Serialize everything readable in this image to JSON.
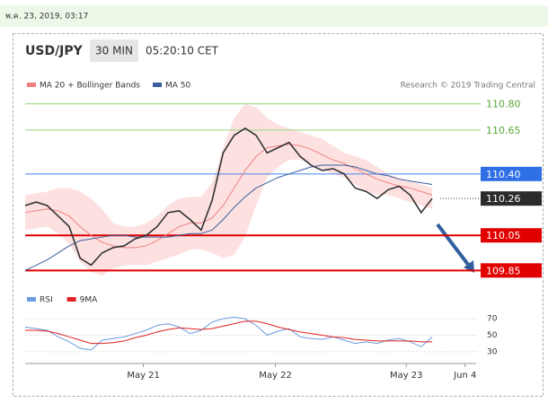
{
  "date": "พ.ค. 23, 2019, 03:17",
  "header": {
    "symbol": "USD/JPY",
    "interval": "30 MIN",
    "time": "05:20:10 CET",
    "credit": "Research © 2019 Trading Central"
  },
  "chart_data": {
    "type": "line",
    "x": [
      0,
      2,
      4,
      6,
      8,
      10,
      12,
      14,
      16,
      18,
      20,
      22,
      24,
      26,
      28,
      30,
      32,
      34,
      36,
      38,
      40,
      42,
      44,
      46,
      48,
      50,
      52,
      54,
      56,
      58,
      60,
      62,
      64,
      66,
      68,
      70,
      72,
      74
    ],
    "values": [
      110.22,
      110.24,
      110.22,
      110.16,
      110.1,
      109.92,
      109.88,
      109.95,
      109.98,
      109.99,
      110.03,
      110.05,
      110.1,
      110.18,
      110.19,
      110.14,
      110.08,
      110.25,
      110.52,
      110.62,
      110.66,
      110.62,
      110.52,
      110.55,
      110.58,
      110.5,
      110.45,
      110.42,
      110.43,
      110.4,
      110.32,
      110.3,
      110.26,
      110.31,
      110.33,
      110.28,
      110.18,
      110.26
    ],
    "color": "#333333",
    "series": [
      {
        "name": "MA 20 + Bollinger Bands",
        "color": "#f08080",
        "values": [
          110.18,
          110.19,
          110.2,
          110.19,
          110.16,
          110.1,
          110.05,
          110.01,
          109.99,
          109.98,
          109.98,
          109.99,
          110.02,
          110.06,
          110.1,
          110.12,
          110.12,
          110.15,
          110.22,
          110.32,
          110.42,
          110.5,
          110.55,
          110.56,
          110.57,
          110.56,
          110.54,
          110.51,
          110.48,
          110.46,
          110.43,
          110.4,
          110.37,
          110.35,
          110.33,
          110.32,
          110.3,
          110.28
        ]
      },
      {
        "name": "MA 50",
        "color": "#3a5f9e",
        "values": [
          109.85,
          109.88,
          109.91,
          109.95,
          109.99,
          110.02,
          110.03,
          110.04,
          110.05,
          110.05,
          110.04,
          110.04,
          110.04,
          110.04,
          110.05,
          110.06,
          110.06,
          110.08,
          110.14,
          110.21,
          110.27,
          110.32,
          110.35,
          110.38,
          110.4,
          110.42,
          110.44,
          110.45,
          110.45,
          110.45,
          110.44,
          110.42,
          110.4,
          110.39,
          110.37,
          110.36,
          110.35,
          110.34
        ]
      }
    ],
    "bands": {
      "color": "#fcdada",
      "upper": [
        110.28,
        110.29,
        110.3,
        110.32,
        110.32,
        110.3,
        110.26,
        110.2,
        110.12,
        110.1,
        110.1,
        110.12,
        110.16,
        110.22,
        110.26,
        110.27,
        110.27,
        110.35,
        110.55,
        110.72,
        110.8,
        110.78,
        110.72,
        110.68,
        110.66,
        110.64,
        110.62,
        110.6,
        110.56,
        110.52,
        110.5,
        110.48,
        110.44,
        110.4,
        110.38,
        110.36,
        110.34,
        110.32
      ],
      "lower": [
        110.08,
        110.09,
        110.1,
        110.06,
        110.0,
        109.9,
        109.84,
        109.82,
        109.86,
        109.88,
        109.88,
        109.88,
        109.9,
        109.92,
        109.94,
        109.97,
        109.97,
        109.95,
        109.92,
        109.94,
        110.04,
        110.22,
        110.38,
        110.44,
        110.48,
        110.48,
        110.46,
        110.42,
        110.4,
        110.38,
        110.34,
        110.3,
        110.28,
        110.28,
        110.26,
        110.24,
        110.22,
        110.2
      ]
    },
    "xlim": [
      0,
      82
    ],
    "ylim": [
      109.78,
      110.88
    ],
    "xticks": [
      {
        "value": 21.5,
        "label": "May 21"
      },
      {
        "value": 45.5,
        "label": "May 22"
      },
      {
        "value": 69.3,
        "label": "May 23"
      },
      {
        "value": 80,
        "label": "Jun 4"
      }
    ],
    "levels": [
      {
        "value": 110.8,
        "label": "110.80",
        "line_color": "#a6d88a",
        "box_color": "#ffffff",
        "text_color": "#5aa83a",
        "dotted": false
      },
      {
        "value": 110.65,
        "label": "110.65",
        "line_color": "#a6d88a",
        "box_color": "#ffffff",
        "text_color": "#5aa83a",
        "dotted": false
      },
      {
        "value": 110.4,
        "label": "110.40",
        "line_color": "#5b8ff0",
        "box_color": "#2f6fe6",
        "text_color": "#ffffff",
        "dotted": false
      },
      {
        "value": 110.26,
        "label": "110.26",
        "line_color": "#333333",
        "box_color": "#2b2b2b",
        "text_color": "#ffffff",
        "dotted": true
      },
      {
        "value": 110.05,
        "label": "110.05",
        "line_color": "#e00000",
        "box_color": "#e00000",
        "text_color": "#ffffff",
        "dotted": false
      },
      {
        "value": 109.85,
        "label": "109.85",
        "line_color": "#e00000",
        "box_color": "#e00000",
        "text_color": "#ffffff",
        "dotted": false
      }
    ],
    "rsi": {
      "ylim": [
        20,
        80
      ],
      "yticks": [
        30,
        50,
        70
      ],
      "series": [
        {
          "name": "RSI",
          "color": "#6b9be0",
          "values": [
            60,
            58,
            56,
            48,
            42,
            34,
            32,
            44,
            46,
            48,
            52,
            56,
            62,
            64,
            60,
            52,
            56,
            66,
            70,
            72,
            70,
            62,
            50,
            55,
            58,
            48,
            46,
            45,
            48,
            44,
            40,
            42,
            40,
            44,
            46,
            42,
            36,
            48
          ]
        },
        {
          "name": "9MA",
          "color": "#e02020",
          "values": [
            56,
            56,
            55,
            52,
            48,
            44,
            40,
            40,
            41,
            43,
            47,
            50,
            54,
            57,
            59,
            58,
            57,
            58,
            61,
            64,
            67,
            67,
            64,
            60,
            57,
            54,
            52,
            50,
            48,
            47,
            45,
            44,
            43,
            43,
            43,
            43,
            42,
            42
          ]
        }
      ]
    }
  }
}
